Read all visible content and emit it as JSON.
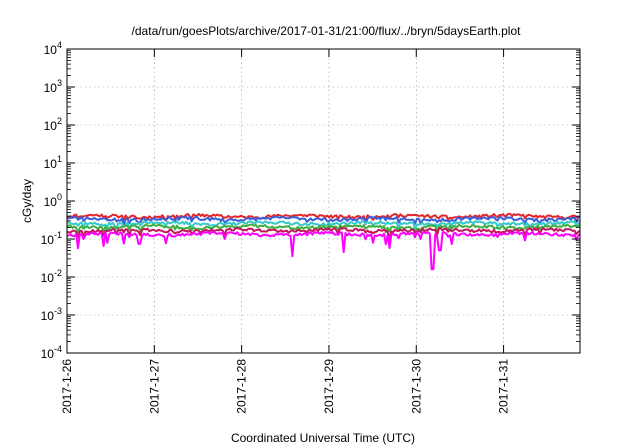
{
  "chart_data": {
    "type": "line",
    "title": "/data/run/goesPlots/archive/2017-01-31/21:00/flux/../bryn/5daysEarth.plot",
    "xlabel": "Coordinated Universal Time (UTC)",
    "ylabel": "cGy/day",
    "yscale": "log",
    "ylim": [
      0.0001,
      10000
    ],
    "xlim": [
      "2017-01-26 00:00",
      "2017-01-31 21:00"
    ],
    "grid": true,
    "legend": "none",
    "x_ticks": [
      "2017-1-26",
      "2017-1-27",
      "2017-1-28",
      "2017-1-29",
      "2017-1-30",
      "2017-1-31"
    ],
    "y_ticks": [
      {
        "base": "10",
        "exp": "-4"
      },
      {
        "base": "10",
        "exp": "-3"
      },
      {
        "base": "10",
        "exp": "-2"
      },
      {
        "base": "10",
        "exp": "-1"
      },
      {
        "base": "10",
        "exp": "0"
      },
      {
        "base": "10",
        "exp": "1"
      },
      {
        "base": "10",
        "exp": "2"
      },
      {
        "base": "10",
        "exp": "3"
      },
      {
        "base": "10",
        "exp": "4"
      }
    ],
    "series": [
      {
        "color": "#e4262b",
        "level": 0.4,
        "dip": 0.82,
        "seed": 11
      },
      {
        "color": "#3b5fd8",
        "level": 0.34,
        "dip": 0.75,
        "seed": 23
      },
      {
        "color": "#36c9c9",
        "level": 0.26,
        "dip": 0.72,
        "seed": 37
      },
      {
        "color": "#3fae3f",
        "level": 0.21,
        "dip": 0.7,
        "seed": 41
      },
      {
        "color": "#c2185b",
        "level": 0.17,
        "dip": 0.66,
        "seed": 53
      },
      {
        "color": "#ff00ff",
        "level": 0.135,
        "dip": 0.45,
        "seed": 67
      }
    ],
    "deep_dips": [
      {
        "x": "2017-01-30 04:30",
        "y": 0.016
      },
      {
        "x": "2017-01-28 14:00",
        "y": 0.035
      },
      {
        "x": "2017-01-29 04:00",
        "y": 0.045
      },
      {
        "x": "2017-01-30 06:30",
        "y": 0.05
      }
    ]
  }
}
